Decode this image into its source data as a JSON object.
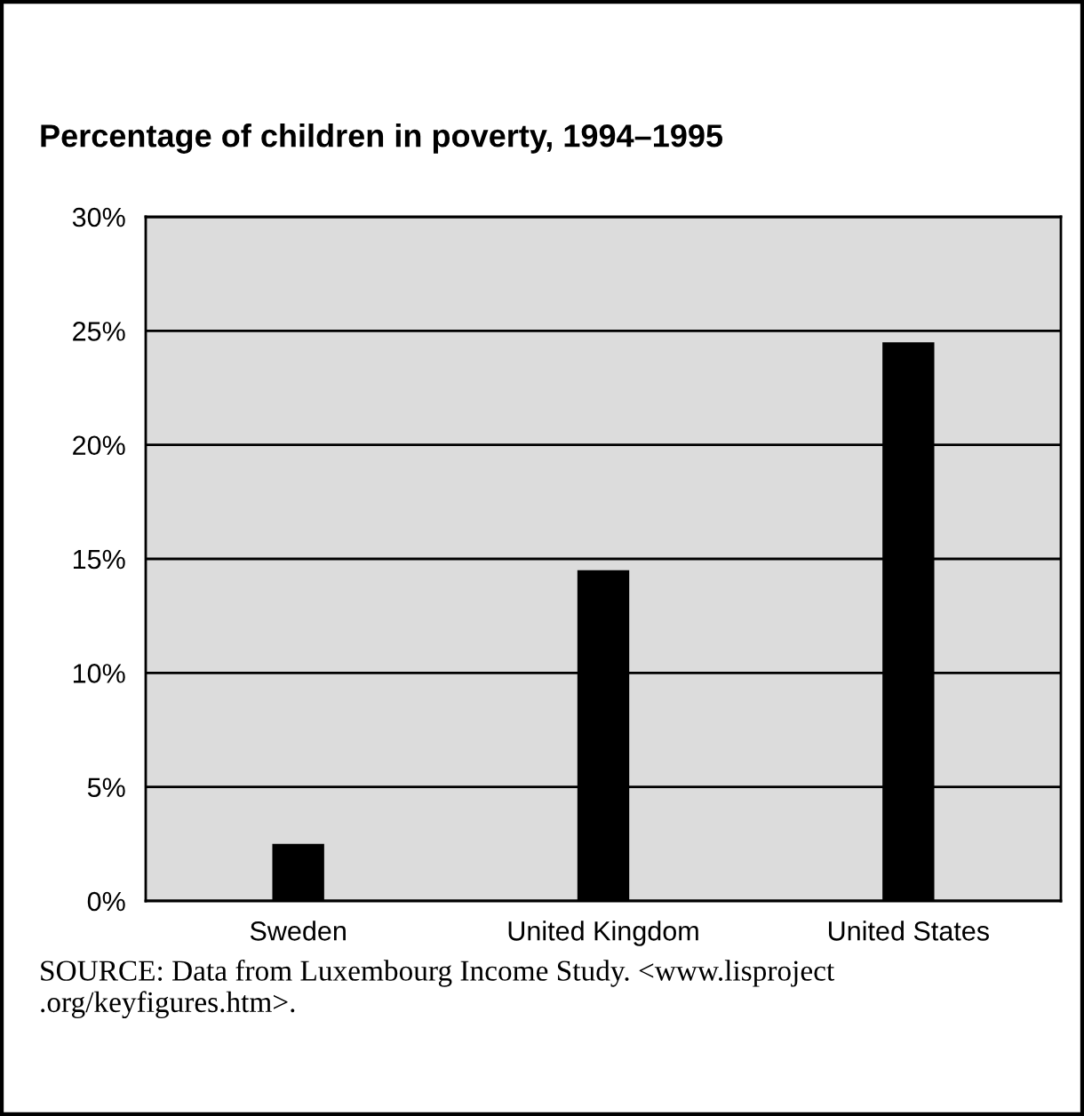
{
  "chart_data": {
    "type": "bar",
    "title": "Percentage of children in poverty, 1994–1995",
    "categories": [
      "Sweden",
      "United Kingdom",
      "United States"
    ],
    "values": [
      2.5,
      14.5,
      24.5
    ],
    "color": "#000000",
    "ylim": [
      0,
      30
    ],
    "yticks": [
      {
        "value": 0,
        "label": "0%"
      },
      {
        "value": 5,
        "label": "5%"
      },
      {
        "value": 10,
        "label": "10%"
      },
      {
        "value": 15,
        "label": "15%"
      },
      {
        "value": 20,
        "label": "20%"
      },
      {
        "value": 25,
        "label": "25%"
      },
      {
        "value": 30,
        "label": "30%"
      }
    ],
    "grid": "y",
    "annotations": [
      "SOURCE: Data from Luxembourg Income Study. <www.lisproject .org/keyfigures.htm>."
    ]
  }
}
